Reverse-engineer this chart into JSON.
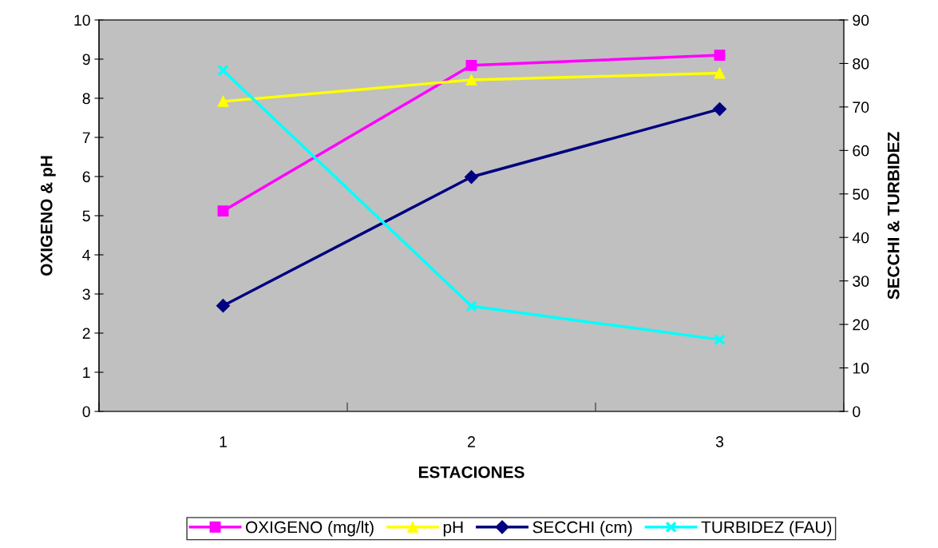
{
  "chart_data": {
    "type": "line",
    "xlabel": "ESTACIONES",
    "ylabel": "OXIGENO & pH",
    "y2label": "SECCHI & TURBIDEZ",
    "categories": [
      "1",
      "2",
      "3"
    ],
    "series": [
      {
        "name": "OXIGENO (mg/lt)",
        "color": "#ff00ff",
        "marker": "square",
        "values": [
          5.12,
          8.84,
          9.1
        ]
      },
      {
        "name": "pH",
        "color": "#ffff00",
        "marker": "triangle",
        "values": [
          7.92,
          8.47,
          8.64
        ]
      },
      {
        "name": "SECCHI (cm)",
        "color": "#000080",
        "marker": "diamond",
        "axis": "y2",
        "values": [
          24.3,
          53.9,
          69.5
        ]
      },
      {
        "name": "TURBIDEZ (FAU)",
        "color": "#00ffff",
        "marker": "cross",
        "axis": "y2",
        "values": [
          78.4,
          24.2,
          16.5
        ]
      }
    ],
    "ylim": [
      0,
      10
    ],
    "yticks": [
      0,
      1,
      2,
      3,
      4,
      5,
      6,
      7,
      8,
      9,
      10
    ],
    "y2lim": [
      0,
      90
    ],
    "y2ticks": [
      0,
      10,
      20,
      30,
      40,
      50,
      60,
      70,
      80,
      90
    ],
    "grid": false,
    "legend": "bottom"
  }
}
